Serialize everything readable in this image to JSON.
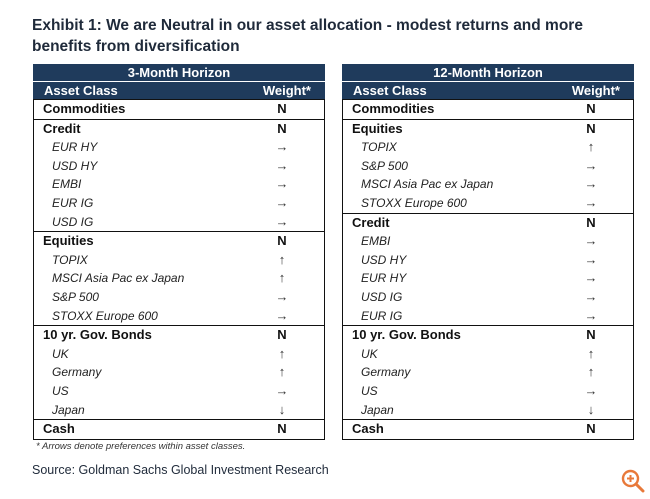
{
  "title": "Exhibit 1: We are Neutral in our asset allocation - modest returns and more benefits from diversification",
  "left_panel": {
    "horizon": "3-Month Horizon",
    "col_asset": "Asset Class",
    "col_weight": "Weight*",
    "groups": [
      {
        "label": "Commodities",
        "value": "N",
        "items": []
      },
      {
        "label": "Credit",
        "value": "N",
        "items": [
          {
            "label": "EUR HY",
            "value": "→"
          },
          {
            "label": "USD HY",
            "value": "→"
          },
          {
            "label": "EMBI",
            "value": "→"
          },
          {
            "label": "EUR IG",
            "value": "→"
          },
          {
            "label": "USD IG",
            "value": "→"
          }
        ]
      },
      {
        "label": "Equities",
        "value": "N",
        "items": [
          {
            "label": "TOPIX",
            "value": "↑"
          },
          {
            "label": "MSCI Asia Pac ex Japan",
            "value": "↑"
          },
          {
            "label": "S&P 500",
            "value": "→"
          },
          {
            "label": "STOXX Europe 600",
            "value": "→"
          }
        ]
      },
      {
        "label": "10 yr. Gov. Bonds",
        "value": "N",
        "items": [
          {
            "label": "UK",
            "value": "↑"
          },
          {
            "label": "Germany",
            "value": "↑"
          },
          {
            "label": "US",
            "value": "→"
          },
          {
            "label": "Japan",
            "value": "↓"
          }
        ]
      },
      {
        "label": "Cash",
        "value": "N",
        "items": []
      }
    ]
  },
  "right_panel": {
    "horizon": "12-Month Horizon",
    "col_asset": "Asset Class",
    "col_weight": "Weight*",
    "groups": [
      {
        "label": "Commodities",
        "value": "N",
        "items": []
      },
      {
        "label": "Equities",
        "value": "N",
        "items": [
          {
            "label": "TOPIX",
            "value": "↑"
          },
          {
            "label": "S&P 500",
            "value": "→"
          },
          {
            "label": "MSCI Asia Pac ex Japan",
            "value": "→"
          },
          {
            "label": "STOXX Europe 600",
            "value": "→"
          }
        ]
      },
      {
        "label": "Credit",
        "value": "N",
        "items": [
          {
            "label": "EMBI",
            "value": "→"
          },
          {
            "label": "USD HY",
            "value": "→"
          },
          {
            "label": "EUR HY",
            "value": "→"
          },
          {
            "label": "USD IG",
            "value": "→"
          },
          {
            "label": "EUR IG",
            "value": "→"
          }
        ]
      },
      {
        "label": "10 yr. Gov. Bonds",
        "value": "N",
        "items": [
          {
            "label": "UK",
            "value": "↑"
          },
          {
            "label": "Germany",
            "value": "↑"
          },
          {
            "label": "US",
            "value": "→"
          },
          {
            "label": "Japan",
            "value": "↓"
          }
        ]
      },
      {
        "label": "Cash",
        "value": "N",
        "items": []
      }
    ]
  },
  "note": "* Arrows denote preferences within asset classes.",
  "source": "Source: Goldman Sachs Global Investment Research",
  "zoom_icon": "zoom-in-icon",
  "accent_color": "#1f3b5c",
  "zoom_color": "#e8793a"
}
